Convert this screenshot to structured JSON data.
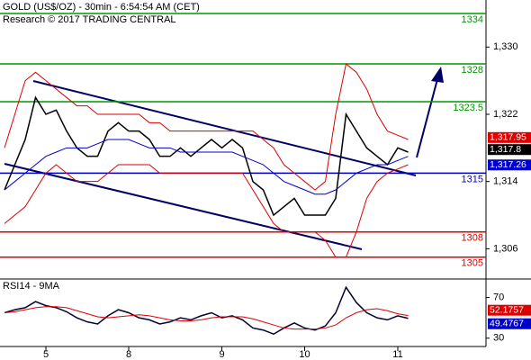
{
  "chart_data": [
    {
      "type": "line",
      "title": "GOLD (US$/OZ) - 30min - 6:54:54 AM (CET)",
      "subtitle": "Research © 2017 TRADING CENTRAL",
      "categories": [
        null,
        null,
        null,
        null,
        "5",
        null,
        null,
        null,
        null,
        null,
        null,
        null,
        "8",
        null,
        null,
        null,
        null,
        null,
        null,
        null,
        null,
        "9",
        null,
        null,
        null,
        null,
        null,
        null,
        null,
        "10",
        null,
        null,
        null,
        null,
        null,
        null,
        null,
        null,
        "11",
        null
      ],
      "series": [
        {
          "color": "#000000",
          "values": [
            1313,
            1316,
            1319,
            1324,
            1322,
            1322.5,
            1320,
            1318,
            1317,
            1317,
            1320,
            1321,
            1320,
            1320,
            1319,
            1317,
            1317,
            1318,
            1317,
            1318,
            1319,
            1318,
            1319,
            1318,
            1314,
            1313,
            1310,
            1311,
            1312,
            1310,
            1310,
            1310,
            1312,
            1322,
            1320,
            1318,
            1317,
            1316,
            1318,
            1317.5
          ]
        },
        {
          "color": "#0000cc",
          "values": [
            1313,
            1314,
            1315,
            1316,
            1317,
            1317.5,
            1318,
            1318,
            1318,
            1318.5,
            1319,
            1319,
            1319,
            1318.5,
            1318,
            1318,
            1318,
            1317.5,
            1317.5,
            1317.5,
            1317.5,
            1317.5,
            1317.5,
            1317,
            1316.5,
            1316,
            1315,
            1314,
            1313.5,
            1313,
            1312.5,
            1312.5,
            1313,
            1314,
            1315,
            1315.5,
            1316,
            1316,
            1316.5,
            1317
          ]
        },
        {
          "color": "#dd0000",
          "values": [
            1318,
            1322,
            1326,
            1327,
            1326,
            1325,
            1324,
            1323,
            1323,
            1322,
            1322,
            1322,
            1322,
            1322,
            1321,
            1321,
            1320,
            1320,
            1320,
            1320,
            1320,
            1320,
            1320,
            1320,
            1320,
            1319,
            1318,
            1316,
            1315,
            1314,
            1313,
            1314,
            1322,
            1328,
            1327,
            1325,
            1322,
            1320,
            1319.5,
            1319
          ]
        },
        {
          "color": "#dd0000",
          "values": [
            1309,
            1310,
            1311,
            1313,
            1315,
            1316,
            1315,
            1314,
            1314,
            1314,
            1315,
            1316,
            1316,
            1316,
            1316,
            1315,
            1315,
            1315,
            1315,
            1315,
            1315,
            1315,
            1315,
            1315,
            1313,
            1311,
            1309,
            1308,
            1308,
            1308,
            1308,
            1307,
            1305,
            1305,
            1308,
            1312,
            1314,
            1315,
            1315.5,
            1316
          ]
        }
      ],
      "levels": [
        {
          "value": 1334,
          "color": "#009900"
        },
        {
          "value": 1328,
          "color": "#009900"
        },
        {
          "value": 1323.5,
          "color": "#009900"
        },
        {
          "value": 1315,
          "color": "#0000cc"
        },
        {
          "value": 1308,
          "color": "#dd0000"
        },
        {
          "value": 1305,
          "color": "#dd0000"
        }
      ],
      "last_values": [
        {
          "value": 1317.95,
          "label": "1,317.95",
          "color": "#dd0000"
        },
        {
          "value": 1317.8,
          "label": "1,317.8",
          "color": "#000000"
        },
        {
          "value": 1317.26,
          "label": "1,317.26",
          "color": "#0000cc"
        }
      ],
      "ylim": [
        1302.4,
        1335.6
      ],
      "yticks": [
        {
          "value": 1306,
          "label": "1,306"
        },
        {
          "value": 1314,
          "label": "1,314"
        },
        {
          "value": 1322,
          "label": "1,322"
        },
        {
          "value": 1330,
          "label": "1,330"
        }
      ]
    },
    {
      "type": "line",
      "title": "RSI14 - 9MA",
      "series": [
        {
          "color": "#000033",
          "values": [
            55,
            58,
            60,
            66,
            62,
            60,
            56,
            50,
            46,
            44,
            52,
            58,
            55,
            50,
            48,
            44,
            46,
            50,
            48,
            52,
            55,
            50,
            52,
            48,
            40,
            38,
            34,
            40,
            45,
            40,
            38,
            42,
            55,
            80,
            65,
            55,
            50,
            48,
            52,
            49.5
          ]
        },
        {
          "color": "#dd0000",
          "values": [
            55,
            56,
            58,
            60,
            61,
            61,
            60,
            57,
            54,
            51,
            50,
            51,
            52,
            53,
            52,
            50,
            48,
            47,
            47,
            48,
            50,
            51,
            51,
            51,
            49,
            46,
            43,
            40,
            39,
            39,
            39,
            40,
            43,
            50,
            55,
            58,
            59,
            57,
            54,
            52.2
          ]
        }
      ],
      "last_values": [
        {
          "value": 52.1757,
          "label": "52.1757",
          "color": "#dd0000"
        },
        {
          "value": 49.4767,
          "label": "49.4767",
          "color": "#0000cc"
        }
      ],
      "ylim": [
        21.8,
        88.2
      ],
      "yticks": [
        30,
        70
      ]
    }
  ]
}
